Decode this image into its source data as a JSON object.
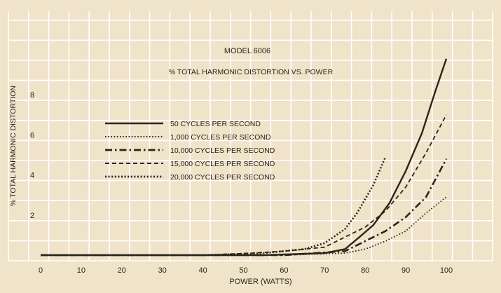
{
  "chart_data": {
    "type": "line",
    "title": "MODEL 6006",
    "subtitle": "% TOTAL HARMONIC DISTORTION VS. POWER",
    "xlabel": "POWER (WATTS)",
    "ylabel": "% TOTAL HARMONIC DISTORTION",
    "xlim": [
      0,
      110
    ],
    "ylim": [
      -0.5,
      11
    ],
    "x_ticks": [
      "0",
      "10",
      "20",
      "30",
      "40",
      "50",
      "60",
      "70",
      "80",
      "90",
      "100"
    ],
    "x_tick_values": [
      0,
      10,
      20,
      30,
      40,
      50,
      60,
      70,
      80,
      90,
      100
    ],
    "y_ticks": [
      "2",
      "4",
      "6",
      "8"
    ],
    "y_tick_values": [
      2,
      4,
      6,
      8
    ],
    "grid": true,
    "legend_placement": "center-left",
    "colors": {
      "background": "#efe3ca",
      "grid": "#ffffff",
      "ink": "#2b2418"
    },
    "series": [
      {
        "name": "50 CYCLES PER SECOND",
        "style": "solid",
        "x": [
          0,
          20,
          40,
          55,
          70,
          75,
          78,
          82,
          86,
          90,
          94,
          97,
          100
        ],
        "y": [
          0,
          0,
          0,
          0,
          0.1,
          0.3,
          0.8,
          1.5,
          2.6,
          4.2,
          6.1,
          8.0,
          9.8
        ]
      },
      {
        "name": "1,000 CYCLES PER SECOND",
        "style": "dotted",
        "x": [
          0,
          20,
          40,
          60,
          75,
          80,
          85,
          90,
          95,
          100
        ],
        "y": [
          0,
          0,
          0,
          0,
          0.1,
          0.3,
          0.7,
          1.2,
          2.1,
          2.9
        ]
      },
      {
        "name": "10,000 CYCLES PER SECOND",
        "style": "dash-dot",
        "x": [
          0,
          20,
          40,
          60,
          75,
          80,
          85,
          90,
          95,
          100
        ],
        "y": [
          0,
          0,
          0,
          0,
          0.2,
          0.7,
          1.2,
          1.9,
          2.9,
          4.8
        ]
      },
      {
        "name": "15,000 CYCLES PER SECOND",
        "style": "dashed",
        "x": [
          0,
          20,
          40,
          52,
          60,
          70,
          76,
          80,
          85,
          90,
          95,
          100
        ],
        "y": [
          0,
          0,
          0,
          0.1,
          0.2,
          0.4,
          1.0,
          1.4,
          2.2,
          3.4,
          5.1,
          7.0
        ]
      },
      {
        "name": "20,000 CYCLES PER SECOND",
        "style": "dotted-heavy",
        "x": [
          0,
          20,
          40,
          55,
          65,
          70,
          75,
          78,
          82,
          85
        ],
        "y": [
          0,
          0,
          0,
          0.1,
          0.3,
          0.6,
          1.3,
          2.1,
          3.5,
          4.9
        ]
      }
    ]
  }
}
